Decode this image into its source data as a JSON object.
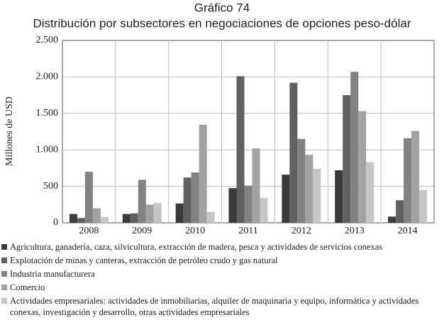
{
  "chart_data": {
    "type": "bar",
    "title": "Gráfico 74",
    "subtitle": "Distribución por subsectores en negociaciones de opciones peso-dólar",
    "y_label": "Millones de USD",
    "categories": [
      "2008",
      "2009",
      "2010",
      "2011",
      "2012",
      "2013",
      "2014"
    ],
    "series": [
      {
        "name": "Agricultura, ganadería, caza, silvicultura, extracción de madera, pesca y actividades de servicios conexas",
        "color": "#3a3a3a",
        "values": [
          120,
          120,
          265,
          475,
          660,
          720,
          85
        ]
      },
      {
        "name": "Explotación de minas y canteras, extracción de petróleo crudo y gas natural",
        "color": "#606060",
        "values": [
          65,
          130,
          620,
          2010,
          1920,
          1750,
          310
        ]
      },
      {
        "name": "Industria manufacturera",
        "color": "#828282",
        "values": [
          700,
          590,
          690,
          510,
          1150,
          2070,
          1160
        ]
      },
      {
        "name": "Comercio",
        "color": "#a2a2a2",
        "values": [
          200,
          250,
          1345,
          1020,
          930,
          1530,
          1260
        ]
      },
      {
        "name": "Actividades empresariales: actividades de inmobiliarias, alquiler de maquinaria y equipo, informática y actividades conexas, investigación y desarrollo, otras actividades empresariales",
        "color": "#c6c6c6",
        "values": [
          80,
          270,
          150,
          340,
          740,
          830,
          450
        ]
      }
    ],
    "ylim": [
      0,
      2500
    ],
    "yticks": [
      0,
      500,
      {
        "value": 1000,
        "label": "1.000"
      },
      {
        "value": 1500,
        "label": "1.500"
      },
      {
        "value": 2000,
        "label": "2.000"
      },
      {
        "value": 2500,
        "label": "2.500"
      }
    ],
    "grid": true
  }
}
